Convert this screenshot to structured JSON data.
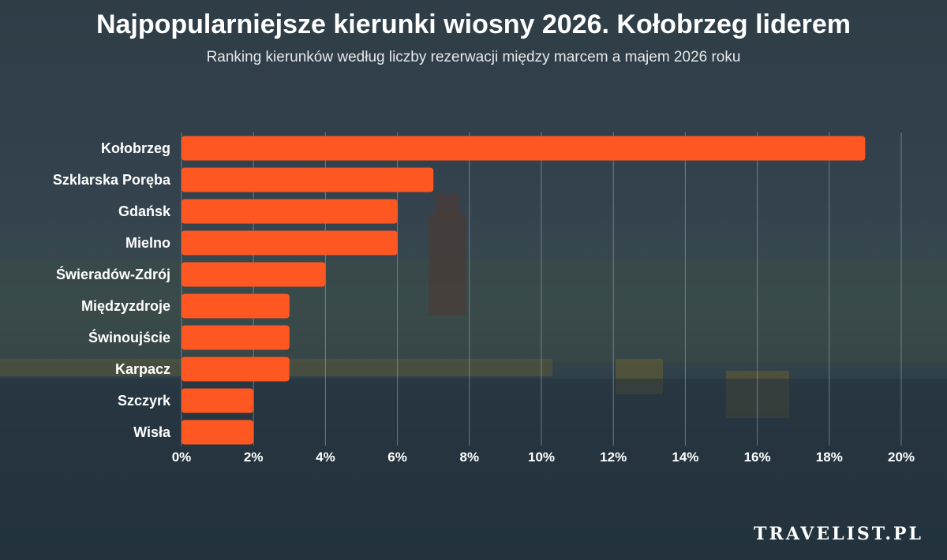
{
  "header": {
    "title": "Najpopularniejsze kierunki wiosny 2026. Kołobrzeg liderem",
    "subtitle": "Ranking kierunków według liczby rezerwacji między marcem a majem 2026 roku"
  },
  "brand": {
    "logo_text": "TRAVELIST.PL"
  },
  "colors": {
    "bar": "#ff5722",
    "grid": "#9aa6ad",
    "text": "#ffffff"
  },
  "chart_data": {
    "type": "bar",
    "orientation": "horizontal",
    "categories": [
      "Kołobrzeg",
      "Szklarska Poręba",
      "Gdańsk",
      "Mielno",
      "Świeradów-Zdrój",
      "Międzyzdroje",
      "Świnoujście",
      "Karpacz",
      "Szczyrk",
      "Wisła"
    ],
    "values": [
      19,
      7,
      6,
      6,
      4,
      3,
      3,
      3,
      2,
      2
    ],
    "xlim": [
      0,
      20
    ],
    "xticks": [
      0,
      2,
      4,
      6,
      8,
      10,
      12,
      14,
      16,
      18,
      20
    ],
    "xtick_labels": [
      "0%",
      "2%",
      "4%",
      "6%",
      "8%",
      "10%",
      "12%",
      "14%",
      "16%",
      "18%",
      "20%"
    ],
    "grid": true,
    "legend": "none"
  }
}
